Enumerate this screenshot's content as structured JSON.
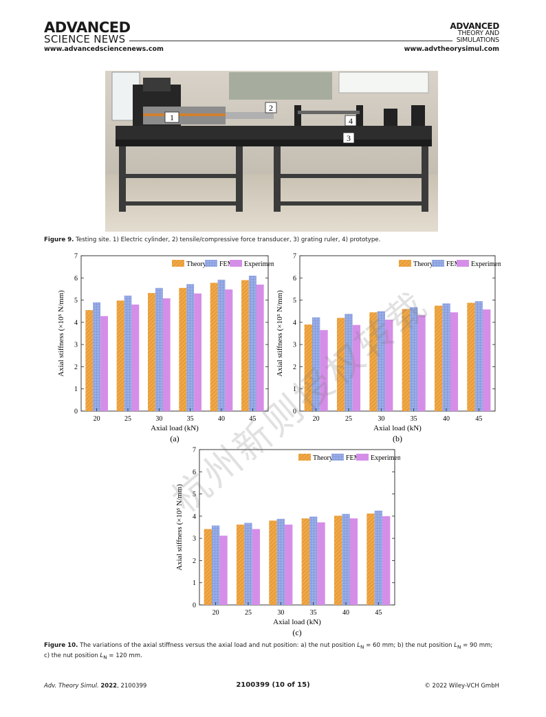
{
  "header": {
    "left_logo_line1": "ADVANCED",
    "left_logo_line2": "SCIENCE NEWS",
    "right_logo_line1": "ADVANCED",
    "right_logo_line2": "THEORY AND",
    "right_logo_line3": "SIMULATIONS",
    "left_url": "www.advancedsciencenews.com",
    "right_url": "www.advtheorysimul.com"
  },
  "photo": {
    "labels": [
      "1",
      "2",
      "3",
      "4"
    ]
  },
  "figure9": {
    "label": "Figure 9.",
    "text": "Testing site. 1) Electric cylinder, 2) tensile/compressive force transducer, 3) grating ruler, 4) prototype."
  },
  "figure10": {
    "label": "Figure 10.",
    "text_part1": "The variations of the axial stiffness versus the axial load and nut position: a) the nut position ",
    "text_part2": " = 60 mm; b) the nut position ",
    "text_part3": " = 90 mm;",
    "text_part4": "c) the nut position ",
    "text_part5": " = 120 mm.",
    "symbol": "L",
    "subscript": "N"
  },
  "watermark": "杭州新则授权转载",
  "footer": {
    "journal": "Adv. Theory Simul.",
    "year": "2022",
    "article": ", 2100399",
    "page": "2100399 (10 of 15)",
    "copyright": "© 2022 Wiley-VCH GmbH"
  },
  "colors": {
    "theory": "#f0a848",
    "fem": "#9aaee6",
    "experiment": "#d58ee8"
  },
  "chart_data": [
    {
      "type": "bar",
      "panel": "(a)",
      "categories": [
        "20",
        "25",
        "30",
        "35",
        "40",
        "45"
      ],
      "series": [
        {
          "name": "Theory",
          "values": [
            4.55,
            4.98,
            5.32,
            5.55,
            5.78,
            5.9
          ]
        },
        {
          "name": "FEM",
          "values": [
            4.9,
            5.2,
            5.55,
            5.72,
            5.92,
            6.1
          ]
        },
        {
          "name": "Experiment",
          "values": [
            4.28,
            4.8,
            5.08,
            5.3,
            5.48,
            5.7
          ]
        }
      ],
      "xlabel": "Axial load (kN)",
      "ylabel": "Axial stiffness (×10⁵ N/mm)",
      "ylim": [
        0,
        7
      ],
      "yticks": [
        "0",
        "1",
        "2",
        "3",
        "4",
        "5",
        "6",
        "7"
      ],
      "legend": "top-right"
    },
    {
      "type": "bar",
      "panel": "(b)",
      "categories": [
        "20",
        "25",
        "30",
        "35",
        "40",
        "45"
      ],
      "series": [
        {
          "name": "Theory",
          "values": [
            3.9,
            4.2,
            4.45,
            4.6,
            4.75,
            4.88
          ]
        },
        {
          "name": "FEM",
          "values": [
            4.22,
            4.38,
            4.5,
            4.68,
            4.85,
            4.95
          ]
        },
        {
          "name": "Experiment",
          "values": [
            3.65,
            3.88,
            4.12,
            4.32,
            4.45,
            4.58
          ]
        }
      ],
      "xlabel": "Axial load (kN)",
      "ylabel": "Axial stiffness (×10⁵ N/mm)",
      "ylim": [
        0,
        7
      ],
      "yticks": [
        "0",
        "1",
        "2",
        "3",
        "4",
        "5",
        "6",
        "7"
      ],
      "legend": "top-right"
    },
    {
      "type": "bar",
      "panel": "(c)",
      "categories": [
        "20",
        "25",
        "30",
        "35",
        "40",
        "45"
      ],
      "series": [
        {
          "name": "Theory",
          "values": [
            3.42,
            3.62,
            3.8,
            3.9,
            4.02,
            4.12
          ]
        },
        {
          "name": "FEM",
          "values": [
            3.58,
            3.7,
            3.88,
            3.98,
            4.1,
            4.25
          ]
        },
        {
          "name": "Experiment",
          "values": [
            3.12,
            3.42,
            3.62,
            3.72,
            3.9,
            4.0
          ]
        }
      ],
      "xlabel": "Axial load (kN)",
      "ylabel": "Axial stiffness (×10⁵ N/mm)",
      "ylim": [
        0,
        7
      ],
      "yticks": [
        "0",
        "1",
        "2",
        "3",
        "4",
        "5",
        "6",
        "7"
      ],
      "legend": "top-right"
    }
  ]
}
